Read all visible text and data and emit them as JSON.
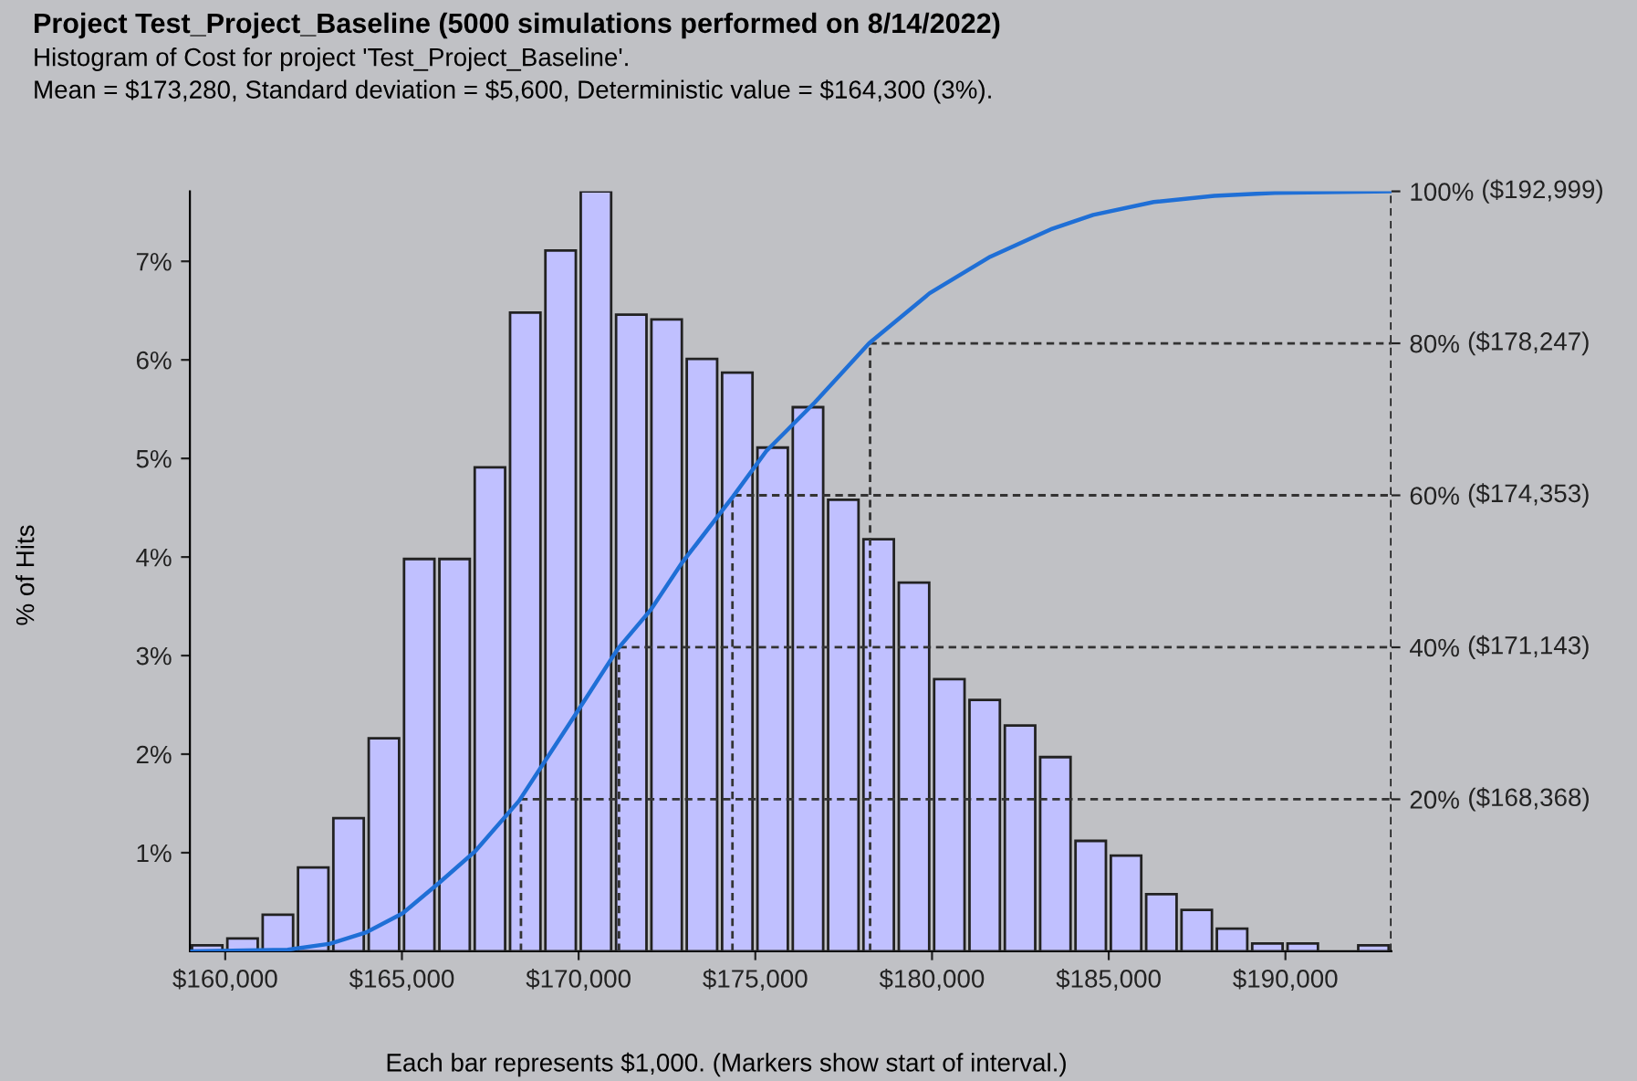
{
  "chart_data": {
    "type": "histogram",
    "title": "Project Test_Project_Baseline (5000 simulations performed on 8/14/2022)",
    "subtitle": "Histogram of Cost for project 'Test_Project_Baseline'.\nMean = $173,280, Standard deviation = $5,600, Deterministic value = $164,300 (3%).",
    "xlabel": "Each bar represents $1,000. (Markers show start of interval.)",
    "ylabel": "% of Hits",
    "series": [
      {
        "color": "#c0c0ff",
        "bins": [
          159000,
          160000,
          161000,
          162000,
          163000,
          164000,
          165000,
          166000,
          167000,
          168000,
          169000,
          170000,
          171000,
          172000,
          173000,
          174000,
          175000,
          176000,
          177000,
          178000,
          179000,
          180000,
          181000,
          182000,
          183000,
          184000,
          185000,
          186000,
          187000,
          188000,
          189000,
          190000,
          191000,
          192000,
          193000
        ],
        "values": [
          0.06,
          0.13,
          0.37,
          0.85,
          1.35,
          2.16,
          3.98,
          3.98,
          4.91,
          6.48,
          7.11,
          7.71,
          6.46,
          6.41,
          6.01,
          5.87,
          5.11,
          5.52,
          4.58,
          4.18,
          3.74,
          2.76,
          2.55,
          2.29,
          1.97,
          1.12,
          0.97,
          0.58,
          0.42,
          0.23,
          0.08,
          0.08,
          null,
          0.06
        ]
      },
      {
        "type": "line",
        "axis": "y2",
        "color": "#1f6fd6",
        "x": [
          159064,
          161767,
          162966,
          163995,
          165023,
          166051,
          167080,
          168314,
          170000,
          171110,
          172052,
          172905,
          174363,
          175306,
          176677,
          178219,
          179933,
          181647,
          183360,
          184560,
          186273,
          187987,
          189700,
          192999
        ],
        "values": [
          0,
          0.2,
          1.0,
          2.5,
          5.0,
          9.0,
          13.2,
          19.8,
          31.8,
          39.8,
          45,
          51,
          59.8,
          65.8,
          72.2,
          80,
          86.6,
          91.4,
          95,
          96.9,
          98.6,
          99.4,
          99.8,
          100
        ]
      }
    ],
    "xlim": [
      159000,
      193000
    ],
    "xticks": [
      {
        "value": 160000,
        "label": "$160,000"
      },
      {
        "value": 165000,
        "label": "$165,000"
      },
      {
        "value": 170000,
        "label": "$170,000"
      },
      {
        "value": 175000,
        "label": "$175,000"
      },
      {
        "value": 180000,
        "label": "$180,000"
      },
      {
        "value": 185000,
        "label": "$185,000"
      },
      {
        "value": 190000,
        "label": "$190,000"
      }
    ],
    "ylim": [
      0,
      7.71
    ],
    "yticks": [
      {
        "value": 1,
        "label": "1%"
      },
      {
        "value": 2,
        "label": "2%"
      },
      {
        "value": 3,
        "label": "3%"
      },
      {
        "value": 4,
        "label": "4%"
      },
      {
        "value": 5,
        "label": "5%"
      },
      {
        "value": 6,
        "label": "6%"
      },
      {
        "value": 7,
        "label": "7%"
      }
    ],
    "y2lim": [
      0,
      100
    ],
    "y2ticks": [
      {
        "value": 20,
        "label": "20%"
      },
      {
        "value": 40,
        "label": "40%"
      },
      {
        "value": 60,
        "label": "60%"
      },
      {
        "value": 80,
        "label": "80%"
      },
      {
        "value": 100,
        "label": "100%"
      }
    ],
    "ref_lines": [
      {
        "axis": "y2",
        "value": 20,
        "line_style": "dashed",
        "color": "#333333"
      },
      {
        "axis": "y2",
        "value": 40,
        "line_style": "dashed",
        "color": "#333333"
      },
      {
        "axis": "y2",
        "value": 60,
        "line_style": "dashed",
        "color": "#333333"
      },
      {
        "axis": "y2",
        "value": 80,
        "line_style": "dashed",
        "color": "#333333"
      },
      {
        "axis": "x",
        "value": 168368,
        "line_style": "dashed",
        "color": "#333333"
      },
      {
        "axis": "x",
        "value": 171143,
        "line_style": "dashed",
        "color": "#333333"
      },
      {
        "axis": "x",
        "value": 174353,
        "line_style": "dashed",
        "color": "#333333"
      },
      {
        "axis": "x",
        "value": 178247,
        "line_style": "dashed",
        "color": "#333333"
      },
      {
        "axis": "x",
        "value": 192999,
        "line_style": "dashed",
        "color": "#000000"
      }
    ],
    "annotations": [
      "($168,368)",
      "($171,143)",
      "($174,353)",
      "($178,247)",
      "($192,999)"
    ],
    "grid": false
  }
}
